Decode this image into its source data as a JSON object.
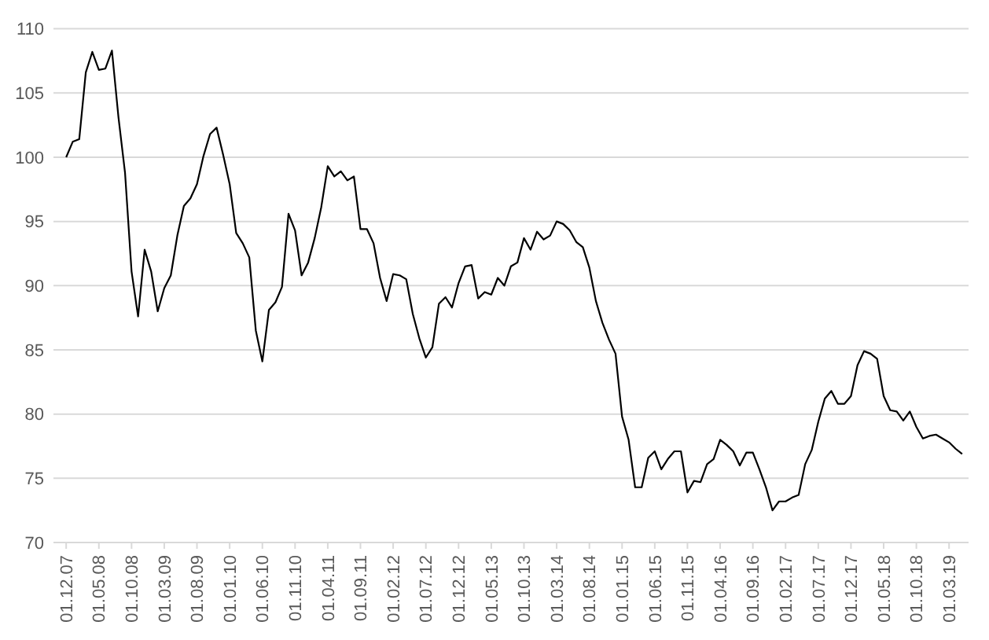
{
  "chart_data": {
    "type": "line",
    "categories": [
      "01.12.07",
      null,
      null,
      null,
      null,
      "01.05.08",
      null,
      null,
      null,
      null,
      "01.10.08",
      null,
      null,
      null,
      null,
      "01.03.09",
      null,
      null,
      null,
      null,
      "01.08.09",
      null,
      null,
      null,
      null,
      "01.01.10",
      null,
      null,
      null,
      null,
      "01.06.10",
      null,
      null,
      null,
      null,
      "01.11.10",
      null,
      null,
      null,
      null,
      "01.04.11",
      null,
      null,
      null,
      null,
      "01.09.11",
      null,
      null,
      null,
      null,
      "01.02.12",
      null,
      null,
      null,
      null,
      "01.07.12",
      null,
      null,
      null,
      null,
      "01.12.12",
      null,
      null,
      null,
      null,
      "01.05.13",
      null,
      null,
      null,
      null,
      "01.10.13",
      null,
      null,
      null,
      null,
      "01.03.14",
      null,
      null,
      null,
      null,
      "01.08.14",
      null,
      null,
      null,
      null,
      "01.01.15",
      null,
      null,
      null,
      null,
      "01.06.15",
      null,
      null,
      null,
      null,
      "01.11.15",
      null,
      null,
      null,
      null,
      "01.04.16",
      null,
      null,
      null,
      null,
      "01.09.16",
      null,
      null,
      null,
      null,
      "01.02.17",
      null,
      null,
      null,
      null,
      "01.07.17",
      null,
      null,
      null,
      null,
      "01.12.17",
      null,
      null,
      null,
      null,
      "01.05.18",
      null,
      null,
      null,
      null,
      "01.10.18",
      null,
      null,
      null,
      null,
      "01.03.19",
      null,
      null
    ],
    "series": [
      {
        "color": "#000000",
        "values": [
          100.0,
          101.2,
          101.4,
          106.6,
          108.2,
          106.8,
          106.9,
          108.3,
          103.1,
          98.8,
          91.1,
          87.6,
          92.8,
          91.1,
          88.0,
          89.8,
          90.8,
          93.9,
          96.2,
          96.8,
          97.9,
          100.1,
          101.8,
          102.3,
          100.2,
          97.9,
          94.1,
          93.3,
          92.2,
          86.5,
          84.1,
          88.1,
          88.7,
          89.9,
          95.6,
          94.3,
          90.8,
          91.8,
          93.7,
          96.1,
          99.3,
          98.5,
          98.9,
          98.2,
          98.5,
          94.4,
          94.4,
          93.3,
          90.6,
          88.8,
          90.9,
          90.8,
          90.5,
          87.8,
          85.9,
          84.4,
          85.2,
          88.6,
          89.1,
          88.3,
          90.2,
          91.5,
          91.6,
          89.0,
          89.5,
          89.3,
          90.6,
          90.0,
          91.5,
          91.8,
          93.7,
          92.8,
          94.2,
          93.6,
          93.9,
          95.0,
          94.8,
          94.3,
          93.4,
          93.0,
          91.4,
          88.8,
          87.1,
          85.8,
          84.7,
          79.8,
          78.0,
          74.3,
          74.3,
          76.6,
          77.1,
          75.7,
          76.5,
          77.1,
          77.1,
          73.9,
          74.8,
          74.7,
          76.1,
          76.5,
          78.0,
          77.6,
          77.1,
          76.0,
          77.0,
          77.0,
          75.7,
          74.3,
          72.5,
          73.2,
          73.2,
          73.5,
          73.7,
          76.1,
          77.2,
          79.4,
          81.2,
          81.8,
          80.8,
          80.8,
          81.4,
          83.8,
          84.9,
          84.7,
          84.3,
          81.4,
          80.3,
          80.2,
          79.5,
          80.2,
          79.0,
          78.1,
          78.3,
          78.4,
          78.1,
          77.8,
          77.3,
          76.9
        ]
      }
    ],
    "ylim": [
      70,
      110
    ],
    "yticks": [
      70,
      75,
      80,
      85,
      90,
      95,
      100,
      105,
      110
    ],
    "grid": "y"
  }
}
